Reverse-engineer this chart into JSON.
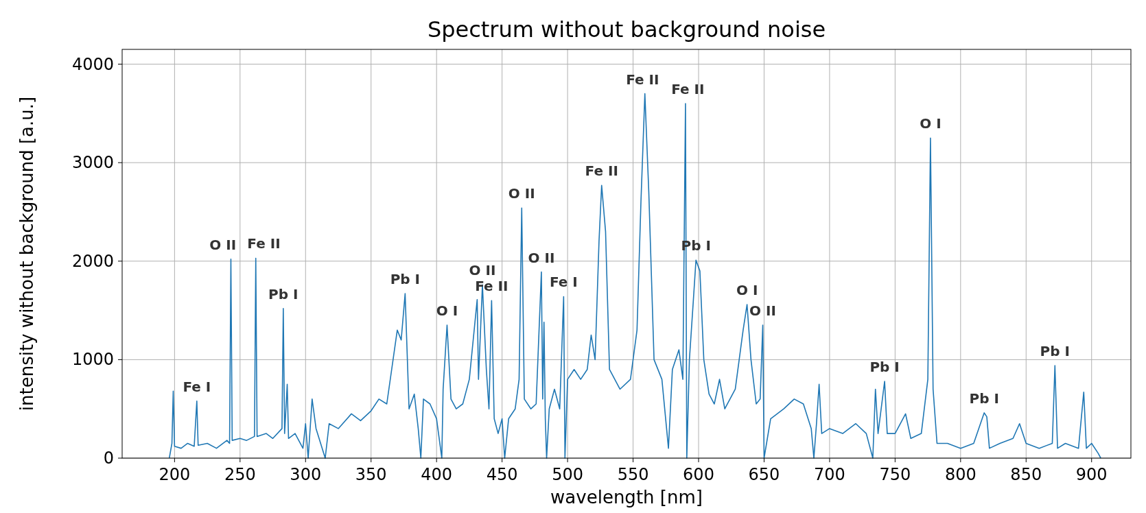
{
  "chart_data": {
    "type": "line",
    "title": "Spectrum without background noise",
    "xlabel": "wavelength [nm]",
    "ylabel": "intensity without background [a.u.]",
    "xlim": [
      160,
      930
    ],
    "ylim": [
      0,
      4150
    ],
    "xticks": [
      200,
      250,
      300,
      350,
      400,
      450,
      500,
      550,
      600,
      650,
      700,
      750,
      800,
      850,
      900
    ],
    "yticks": [
      0,
      1000,
      2000,
      3000,
      4000
    ],
    "grid": true,
    "series": [
      {
        "color": "#1f77b4",
        "x": [
          196,
          198,
          199,
          200,
          205,
          210,
          215,
          217,
          218,
          225,
          232,
          240,
          242,
          243,
          244,
          250,
          255,
          261,
          262,
          263,
          270,
          275,
          282,
          283,
          284,
          286,
          287,
          292,
          298,
          300,
          302,
          305,
          308,
          315,
          318,
          325,
          335,
          342,
          350,
          356,
          362,
          370,
          373,
          376,
          379,
          383,
          386,
          388,
          390,
          395,
          400,
          404,
          405,
          408,
          411,
          415,
          420,
          425,
          431,
          432,
          435,
          438,
          440,
          442,
          444,
          447,
          450,
          452,
          455,
          460,
          463,
          465,
          467,
          472,
          476,
          480,
          481,
          482,
          483,
          484,
          486,
          490,
          494,
          497,
          498,
          500,
          505,
          510,
          515,
          518,
          521,
          524,
          526,
          529,
          532,
          540,
          548,
          553,
          556,
          559,
          562,
          566,
          572,
          577,
          580,
          585,
          588,
          590,
          591,
          593,
          596,
          598,
          601,
          604,
          608,
          612,
          616,
          620,
          628,
          634,
          637,
          640,
          644,
          647,
          649,
          650,
          655,
          665,
          673,
          680,
          686,
          688,
          690,
          692,
          694,
          700,
          710,
          720,
          728,
          733,
          735,
          737,
          742,
          744,
          750,
          758,
          762,
          770,
          775,
          777,
          779,
          782,
          790,
          800,
          810,
          818,
          820,
          822,
          830,
          840,
          845,
          850,
          860,
          870,
          872,
          874,
          880,
          890,
          894,
          896,
          900,
          905,
          907
        ],
        "values": [
          0,
          150,
          680,
          120,
          100,
          150,
          120,
          580,
          130,
          150,
          100,
          180,
          150,
          2020,
          180,
          200,
          180,
          220,
          2030,
          220,
          250,
          200,
          300,
          1520,
          250,
          750,
          200,
          250,
          100,
          350,
          0,
          600,
          300,
          0,
          350,
          300,
          450,
          380,
          480,
          600,
          550,
          1300,
          1200,
          1670,
          500,
          650,
          300,
          0,
          600,
          550,
          400,
          0,
          700,
          1350,
          600,
          500,
          550,
          800,
          1610,
          800,
          1760,
          900,
          500,
          1600,
          400,
          250,
          400,
          0,
          400,
          500,
          800,
          2540,
          600,
          500,
          550,
          1890,
          600,
          1380,
          400,
          0,
          500,
          700,
          500,
          1640,
          0,
          800,
          900,
          800,
          900,
          1250,
          1000,
          2200,
          2770,
          2300,
          900,
          700,
          800,
          1300,
          2600,
          3700,
          2700,
          1000,
          800,
          100,
          900,
          1100,
          800,
          3600,
          0,
          1000,
          1600,
          2010,
          1900,
          1000,
          650,
          550,
          800,
          500,
          700,
          1300,
          1560,
          1000,
          550,
          600,
          1350,
          0,
          400,
          500,
          600,
          550,
          300,
          0,
          350,
          750,
          250,
          300,
          250,
          350,
          250,
          0,
          700,
          250,
          780,
          250,
          250,
          450,
          200,
          250,
          800,
          3250,
          700,
          150,
          150,
          100,
          150,
          460,
          420,
          100,
          150,
          200,
          350,
          150,
          100,
          150,
          940,
          100,
          150,
          100,
          670,
          100,
          150,
          50,
          0
        ]
      }
    ],
    "annotations": [
      {
        "text": "Fe I",
        "x": 217,
        "y": 580
      },
      {
        "text": "O II",
        "x": 243,
        "y": 2020
      },
      {
        "text": "Fe II",
        "x": 262,
        "y": 2030
      },
      {
        "text": "Pb I",
        "x": 283,
        "y": 1520
      },
      {
        "text": "Pb I",
        "x": 376,
        "y": 1670
      },
      {
        "text": "O I",
        "x": 408,
        "y": 1350
      },
      {
        "text": "O II",
        "x": 435,
        "y": 1760
      },
      {
        "text": "Fe II",
        "x": 442,
        "y": 1600
      },
      {
        "text": "O II",
        "x": 465,
        "y": 2540
      },
      {
        "text": "O II",
        "x": 480,
        "y": 1890
      },
      {
        "text": "Fe I",
        "x": 497,
        "y": 1640
      },
      {
        "text": "Fe II",
        "x": 526,
        "y": 2770
      },
      {
        "text": "Fe II",
        "x": 559,
        "y": 3700
      },
      {
        "text": "Fe II",
        "x": 590,
        "y": 3600
      },
      {
        "text": "Pb I",
        "x": 598,
        "y": 2010
      },
      {
        "text": "O I",
        "x": 637,
        "y": 1560
      },
      {
        "text": "O II",
        "x": 649,
        "y": 1350
      },
      {
        "text": "Pb I",
        "x": 742,
        "y": 780
      },
      {
        "text": "O I",
        "x": 777,
        "y": 3250
      },
      {
        "text": "Pb I",
        "x": 818,
        "y": 460
      },
      {
        "text": "Pb I",
        "x": 872,
        "y": 940
      }
    ]
  }
}
